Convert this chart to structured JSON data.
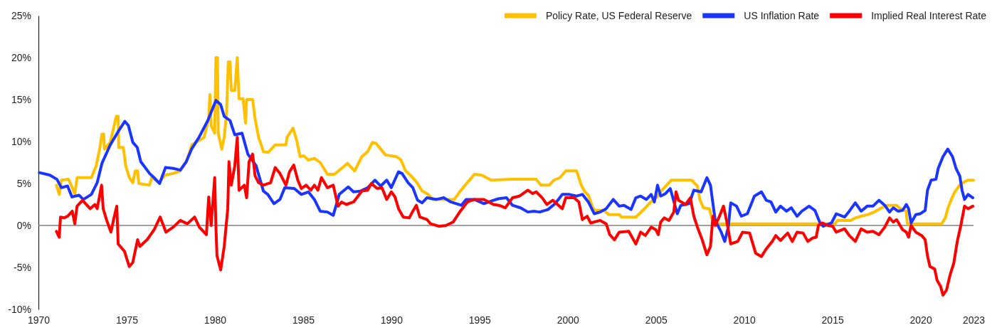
{
  "chart_data": {
    "type": "line",
    "xlim": [
      1970,
      2023
    ],
    "xticks": [
      1970,
      1975,
      1980,
      1985,
      1990,
      1995,
      2000,
      2005,
      2010,
      2015,
      2020,
      2023
    ],
    "ylim": [
      -10,
      25
    ],
    "yticks": [
      {
        "value": -10,
        "label": "-10%"
      },
      {
        "value": -5,
        "label": "-5%"
      },
      {
        "value": 0,
        "label": "0%"
      },
      {
        "value": 5,
        "label": "5%"
      },
      {
        "value": 10,
        "label": "10%"
      },
      {
        "value": 15,
        "label": "15%"
      },
      {
        "value": 20,
        "label": "20%"
      },
      {
        "value": 25,
        "label": "25%"
      }
    ],
    "legend": "top right",
    "ref_lines": [
      {
        "axis": "y",
        "value": 0,
        "color": "#7f7f7f"
      }
    ],
    "series": [
      {
        "name": "Policy Rate, US Federal Reserve",
        "color": "#ffc000",
        "x": [
          1971.02,
          1971.18,
          1971.3,
          1971.7,
          1971.86,
          1972.06,
          1972.19,
          1973.0,
          1973.27,
          1973.47,
          1973.6,
          1973.7,
          1973.74,
          1974.07,
          1974.41,
          1974.52,
          1974.55,
          1974.81,
          1974.95,
          1975.15,
          1975.35,
          1975.49,
          1975.62,
          1975.69,
          1976.29,
          1976.43,
          1976.83,
          1977.17,
          1977.64,
          1978.04,
          1978.38,
          1978.7,
          1979.39,
          1979.65,
          1979.72,
          1979.79,
          1979.99,
          1980.06,
          1980.15,
          1980.19,
          1980.39,
          1980.53,
          1980.66,
          1980.76,
          1980.86,
          1980.93,
          1981.13,
          1981.27,
          1981.37,
          1981.6,
          1981.74,
          1981.8,
          1982.14,
          1982.28,
          1982.48,
          1982.75,
          1983.02,
          1983.42,
          1984.03,
          1984.09,
          1984.43,
          1984.63,
          1984.83,
          1985.03,
          1985.3,
          1985.64,
          1985.97,
          1986.38,
          1986.78,
          1987.18,
          1987.52,
          1987.92,
          1988.33,
          1988.66,
          1988.93,
          1989.13,
          1989.4,
          1989.67,
          1990.28,
          1990.55,
          1990.81,
          1991.08,
          1991.42,
          1991.75,
          1992.09,
          1992.36,
          1993.57,
          1993.91,
          1994.31,
          1994.71,
          1995.12,
          1995.66,
          1996.8,
          1998.21,
          1998.48,
          1998.95,
          1999.22,
          1999.56,
          1999.89,
          2000.5,
          2000.77,
          2000.97,
          2001.17,
          2001.44,
          2001.58,
          2002.05,
          2002.32,
          2002.92,
          2003.05,
          2003.86,
          2004.26,
          2004.66,
          2005.07,
          2005.34,
          2005.87,
          2007.02,
          2007.35,
          2007.49,
          2007.69,
          2008.03,
          2008.16,
          2008.43,
          2015.15,
          2015.29,
          2016.03,
          2016.3,
          2016.63,
          2017.03,
          2017.37,
          2017.7,
          2018.1,
          2018.64,
          2018.84,
          2019.18,
          2019.25,
          2021.2,
          2021.4,
          2021.54,
          2021.74,
          2021.94,
          2022.21,
          2022.49,
          2022.69,
          2023.0
        ],
        "values": [
          4.8,
          3.7,
          5.4,
          5.5,
          4.8,
          3.7,
          5.7,
          5.7,
          7.1,
          9.1,
          10.9,
          10.9,
          9.1,
          9.9,
          13.0,
          13.0,
          9.3,
          9.3,
          7.1,
          5.7,
          5.1,
          6.5,
          6.5,
          5.0,
          4.8,
          5.7,
          5.1,
          6.0,
          6.2,
          6.5,
          7.6,
          9.6,
          10.5,
          12.7,
          15.6,
          11.9,
          11.0,
          20.0,
          20.0,
          11.0,
          9.1,
          10.5,
          13.3,
          19.5,
          19.5,
          16.1,
          16.1,
          20.0,
          15.1,
          15.1,
          12.2,
          15.0,
          15.0,
          12.7,
          10.5,
          8.8,
          8.7,
          9.6,
          9.6,
          10.5,
          11.6,
          10.2,
          8.2,
          8.3,
          7.8,
          8.0,
          7.5,
          6.1,
          6.1,
          6.8,
          7.4,
          6.5,
          8.2,
          8.8,
          9.9,
          9.8,
          9.1,
          8.4,
          8.2,
          7.8,
          6.5,
          6.0,
          5.2,
          4.1,
          3.7,
          3.1,
          3.1,
          4.1,
          5.1,
          6.1,
          6.0,
          5.4,
          5.5,
          5.5,
          4.8,
          4.8,
          5.4,
          5.7,
          6.5,
          6.5,
          4.8,
          4.0,
          3.6,
          2.0,
          1.8,
          1.8,
          1.3,
          1.3,
          1.0,
          1.0,
          1.8,
          2.7,
          3.4,
          4.2,
          5.4,
          5.4,
          4.7,
          3.1,
          2.1,
          2.0,
          0.9,
          0.2,
          0.2,
          0.6,
          0.6,
          0.9,
          1.1,
          1.3,
          1.6,
          2.0,
          2.4,
          2.4,
          2.0,
          1.7,
          0.2,
          0.2,
          0.9,
          2.0,
          3.1,
          4.0,
          4.8,
          5.2,
          5.4,
          5.4
        ]
      },
      {
        "name": "US Inflation Rate",
        "color": "#1a35ff",
        "x": [
          1970.05,
          1970.65,
          1971.05,
          1971.3,
          1971.65,
          1971.9,
          1972.3,
          1972.55,
          1973.0,
          1973.33,
          1973.6,
          1974.07,
          1974.55,
          1974.9,
          1975.1,
          1975.35,
          1975.6,
          1975.8,
          1976.3,
          1976.55,
          1976.87,
          1977.2,
          1977.64,
          1978.04,
          1978.38,
          1978.68,
          1979.1,
          1979.6,
          1980.06,
          1980.33,
          1980.53,
          1980.86,
          1981.13,
          1981.54,
          1981.87,
          1982.34,
          1982.75,
          1983.0,
          1983.35,
          1983.69,
          1983.96,
          1984.5,
          1984.9,
          1985.3,
          1985.64,
          1985.97,
          1986.38,
          1986.71,
          1987.05,
          1987.56,
          1987.86,
          1988.26,
          1988.67,
          1989.07,
          1989.4,
          1989.74,
          1990.0,
          1990.41,
          1990.61,
          1990.95,
          1991.22,
          1991.49,
          1991.75,
          1992.02,
          1992.56,
          1992.97,
          1993.37,
          1993.97,
          1994.24,
          1994.71,
          1995.25,
          1995.79,
          1996.1,
          1996.53,
          1996.87,
          1997.33,
          1997.74,
          1998.08,
          1998.41,
          1998.88,
          1999.29,
          1999.69,
          2000.09,
          2000.5,
          2000.83,
          2001.17,
          2001.5,
          2001.84,
          2002.18,
          2002.58,
          2002.92,
          2003.19,
          2003.59,
          2003.86,
          2004.13,
          2004.46,
          2004.73,
          2004.91,
          2005.09,
          2005.27,
          2005.54,
          2005.81,
          2006.21,
          2006.41,
          2006.88,
          2007.15,
          2007.56,
          2007.89,
          2008.09,
          2008.36,
          2008.7,
          2008.9,
          2009.1,
          2009.24,
          2009.57,
          2009.84,
          2010.18,
          2010.58,
          2010.98,
          2011.25,
          2011.52,
          2011.79,
          2012.06,
          2012.4,
          2012.67,
          2013.0,
          2013.27,
          2013.68,
          2014.01,
          2014.28,
          2014.48,
          2014.95,
          2015.22,
          2015.69,
          2015.96,
          2016.3,
          2016.63,
          2016.97,
          2017.3,
          2017.64,
          2017.97,
          2018.24,
          2018.45,
          2018.72,
          2018.98,
          2019.19,
          2019.32,
          2019.46,
          2019.73,
          2019.99,
          2020.26,
          2020.39,
          2020.6,
          2020.87,
          2021.0,
          2021.27,
          2021.54,
          2021.81,
          2022.01,
          2022.22,
          2022.35,
          2022.49,
          2022.69,
          2022.96
        ],
        "values": [
          6.3,
          6.0,
          5.5,
          4.5,
          4.7,
          3.4,
          3.6,
          3.1,
          3.7,
          5.1,
          7.4,
          9.6,
          11.3,
          12.4,
          11.9,
          9.9,
          9.3,
          7.6,
          6.2,
          5.7,
          5.0,
          6.9,
          6.8,
          6.6,
          7.6,
          9.1,
          10.5,
          12.5,
          14.9,
          14.4,
          13.0,
          12.5,
          10.8,
          11.0,
          8.5,
          7.1,
          4.1,
          3.7,
          2.6,
          3.1,
          4.5,
          4.4,
          3.7,
          4.0,
          3.1,
          1.7,
          1.6,
          1.2,
          3.7,
          4.6,
          4.0,
          4.1,
          4.5,
          5.4,
          4.7,
          5.4,
          4.5,
          6.4,
          6.2,
          5.1,
          4.5,
          3.0,
          2.7,
          3.3,
          3.1,
          3.3,
          2.8,
          2.4,
          3.1,
          3.1,
          2.6,
          3.0,
          3.2,
          3.3,
          2.4,
          2.1,
          1.6,
          1.7,
          1.6,
          1.9,
          2.6,
          3.7,
          3.7,
          3.5,
          3.7,
          2.8,
          1.4,
          1.6,
          2.0,
          3.1,
          2.3,
          2.4,
          1.9,
          3.3,
          3.5,
          3.1,
          3.7,
          2.8,
          4.8,
          3.5,
          3.8,
          4.4,
          1.4,
          2.4,
          2.6,
          4.2,
          4.0,
          5.7,
          4.8,
          0.6,
          -0.8,
          -1.9,
          -0.2,
          2.7,
          2.3,
          1.1,
          1.4,
          3.5,
          4.0,
          3.0,
          2.8,
          1.6,
          2.3,
          1.7,
          2.1,
          1.1,
          1.7,
          2.3,
          1.8,
          0.4,
          -0.1,
          0.3,
          1.4,
          1.0,
          1.7,
          2.7,
          1.7,
          2.3,
          2.3,
          3.0,
          2.4,
          1.6,
          2.1,
          1.7,
          1.8,
          2.5,
          2.0,
          0.3,
          1.3,
          1.4,
          1.8,
          4.2,
          5.4,
          5.5,
          6.8,
          8.2,
          9.1,
          8.2,
          6.8,
          5.9,
          4.2,
          3.1,
          3.7,
          3.3
        ]
      },
      {
        "name": "Implied Real Interest Rate",
        "color": "#ff0000",
        "x": [
          1971.02,
          1971.18,
          1971.25,
          1971.45,
          1971.65,
          1971.92,
          1972.06,
          1972.19,
          1972.5,
          1972.93,
          1973.2,
          1973.33,
          1973.58,
          1973.67,
          1973.87,
          1974.11,
          1974.28,
          1974.44,
          1974.52,
          1974.88,
          1975.15,
          1975.35,
          1975.62,
          1975.75,
          1976.16,
          1976.56,
          1976.9,
          1977.23,
          1977.64,
          1978.04,
          1978.44,
          1978.85,
          1979.12,
          1979.52,
          1979.65,
          1979.79,
          1979.99,
          1980.06,
          1980.12,
          1980.33,
          1980.53,
          1980.73,
          1980.8,
          1980.93,
          1981.13,
          1981.27,
          1981.37,
          1981.67,
          1981.8,
          1981.94,
          1982.14,
          1982.28,
          1982.48,
          1982.75,
          1983.16,
          1983.42,
          1983.69,
          1984.03,
          1984.23,
          1984.47,
          1984.7,
          1984.9,
          1985.17,
          1985.44,
          1985.64,
          1985.84,
          1986.04,
          1986.38,
          1986.71,
          1986.98,
          1987.18,
          1987.45,
          1987.86,
          1988.33,
          1988.66,
          1988.87,
          1989.2,
          1989.47,
          1989.74,
          1990.0,
          1990.21,
          1990.41,
          1990.68,
          1991.02,
          1991.22,
          1991.42,
          1991.62,
          1992.02,
          1992.23,
          1992.7,
          1993.1,
          1993.5,
          1993.91,
          1994.31,
          1994.71,
          1995.25,
          1995.79,
          1996.1,
          1996.46,
          1996.87,
          1997.27,
          1997.74,
          1998.01,
          1998.21,
          1998.55,
          1998.82,
          1999.15,
          1999.69,
          1999.89,
          2000.36,
          2000.63,
          2000.83,
          2001.1,
          2001.3,
          2001.84,
          2002.18,
          2002.38,
          2002.65,
          2002.92,
          2003.46,
          2003.86,
          2004.13,
          2004.4,
          2004.73,
          2004.99,
          2005.13,
          2005.27,
          2005.47,
          2005.74,
          2006.01,
          2006.14,
          2006.28,
          2006.68,
          2006.95,
          2007.15,
          2007.35,
          2007.62,
          2007.89,
          2008.09,
          2008.23,
          2008.36,
          2008.56,
          2008.83,
          2009.03,
          2009.24,
          2009.64,
          2009.91,
          2010.31,
          2010.65,
          2010.98,
          2011.25,
          2011.59,
          2011.79,
          2012.06,
          2012.47,
          2012.73,
          2013.0,
          2013.34,
          2013.61,
          2013.88,
          2014.08,
          2014.21,
          2014.41,
          2014.75,
          2015.02,
          2015.22,
          2015.69,
          2015.96,
          2016.3,
          2016.63,
          2016.97,
          2017.3,
          2017.64,
          2017.97,
          2018.24,
          2018.45,
          2018.64,
          2018.98,
          2019.19,
          2019.32,
          2019.46,
          2019.73,
          2020.06,
          2020.26,
          2020.39,
          2020.53,
          2020.8,
          2020.93,
          2021.14,
          2021.27,
          2021.47,
          2021.67,
          2021.88,
          2022.08,
          2022.28,
          2022.49,
          2022.69,
          2022.96
        ],
        "values": [
          -0.7,
          -1.4,
          1.0,
          0.9,
          1.1,
          1.7,
          0.2,
          2.3,
          3.0,
          2.0,
          2.5,
          2.0,
          4.8,
          2.0,
          0.6,
          -0.8,
          0.9,
          2.3,
          -2.2,
          -3.1,
          -4.9,
          -4.4,
          -1.7,
          -2.5,
          -1.7,
          -0.5,
          1.0,
          -0.8,
          -0.2,
          0.6,
          0.2,
          1.0,
          -0.2,
          -1.1,
          3.4,
          0.0,
          5.7,
          -0.2,
          -3.6,
          -5.3,
          -2.5,
          2.0,
          7.6,
          4.8,
          7.1,
          10.5,
          4.2,
          4.8,
          3.3,
          7.6,
          8.5,
          5.9,
          5.1,
          4.8,
          5.1,
          6.9,
          6.2,
          4.8,
          6.4,
          7.2,
          5.4,
          4.4,
          4.8,
          4.2,
          4.8,
          4.2,
          5.7,
          4.5,
          4.8,
          2.3,
          2.8,
          2.5,
          2.8,
          4.1,
          4.2,
          5.0,
          4.4,
          4.5,
          3.1,
          4.0,
          3.4,
          2.0,
          1.0,
          0.9,
          1.7,
          2.4,
          1.0,
          0.7,
          0.2,
          -0.1,
          0.0,
          0.4,
          1.7,
          2.8,
          3.1,
          3.1,
          2.5,
          2.4,
          2.1,
          3.3,
          3.5,
          4.2,
          3.8,
          4.0,
          3.3,
          2.5,
          3.0,
          2.0,
          3.3,
          3.3,
          2.8,
          0.7,
          1.1,
          0.3,
          0.6,
          0.2,
          -1.1,
          -1.7,
          -0.8,
          -0.7,
          -2.2,
          -0.8,
          -1.2,
          -0.2,
          -0.5,
          -1.1,
          0.4,
          0.9,
          0.6,
          1.6,
          4.0,
          3.0,
          2.5,
          3.3,
          1.1,
          -0.2,
          -1.7,
          -3.5,
          -2.5,
          1.1,
          0.0,
          0.9,
          2.3,
          0.3,
          -2.2,
          -1.9,
          -0.8,
          -0.9,
          -3.3,
          -3.7,
          -2.8,
          -1.9,
          -1.2,
          -1.8,
          -0.9,
          -1.9,
          -0.8,
          -0.9,
          -1.9,
          -1.5,
          -1.4,
          0.0,
          0.3,
          0.0,
          -0.1,
          -0.8,
          -0.4,
          -1.2,
          -1.9,
          -0.4,
          -0.8,
          -0.7,
          -1.1,
          -0.2,
          0.9,
          0.4,
          0.7,
          -0.5,
          -0.8,
          -1.4,
          0.0,
          -0.8,
          -1.2,
          -1.7,
          -3.6,
          -4.9,
          -5.2,
          -6.5,
          -7.3,
          -8.3,
          -7.7,
          -5.9,
          -4.5,
          -1.9,
          0.0,
          2.3,
          2.0,
          2.3
        ]
      }
    ]
  }
}
